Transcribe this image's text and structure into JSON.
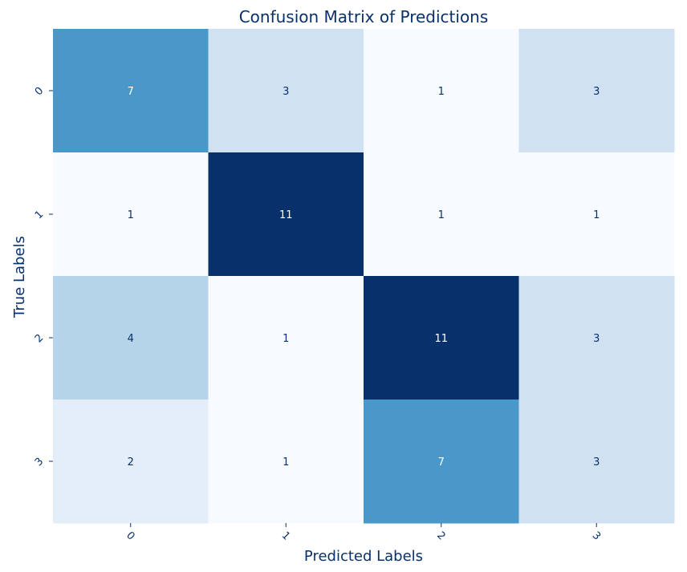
{
  "chart_data": {
    "type": "heatmap",
    "title": "Confusion Matrix of Predictions",
    "xlabel": "Predicted Labels",
    "ylabel": "True Labels",
    "x_categories": [
      "0",
      "1",
      "2",
      "3"
    ],
    "y_categories": [
      "0",
      "1",
      "2",
      "3"
    ],
    "values": [
      [
        7,
        3,
        1,
        3
      ],
      [
        1,
        11,
        1,
        1
      ],
      [
        4,
        1,
        11,
        3
      ],
      [
        2,
        1,
        7,
        3
      ]
    ],
    "colormap": "Blues",
    "value_range": [
      1,
      11
    ],
    "colorbar": false,
    "annotations": true
  },
  "colors": {
    "text_dark_navy": "#08306b",
    "cell_text_light": "#ffffff",
    "cell_text_dark": "#08306b"
  }
}
